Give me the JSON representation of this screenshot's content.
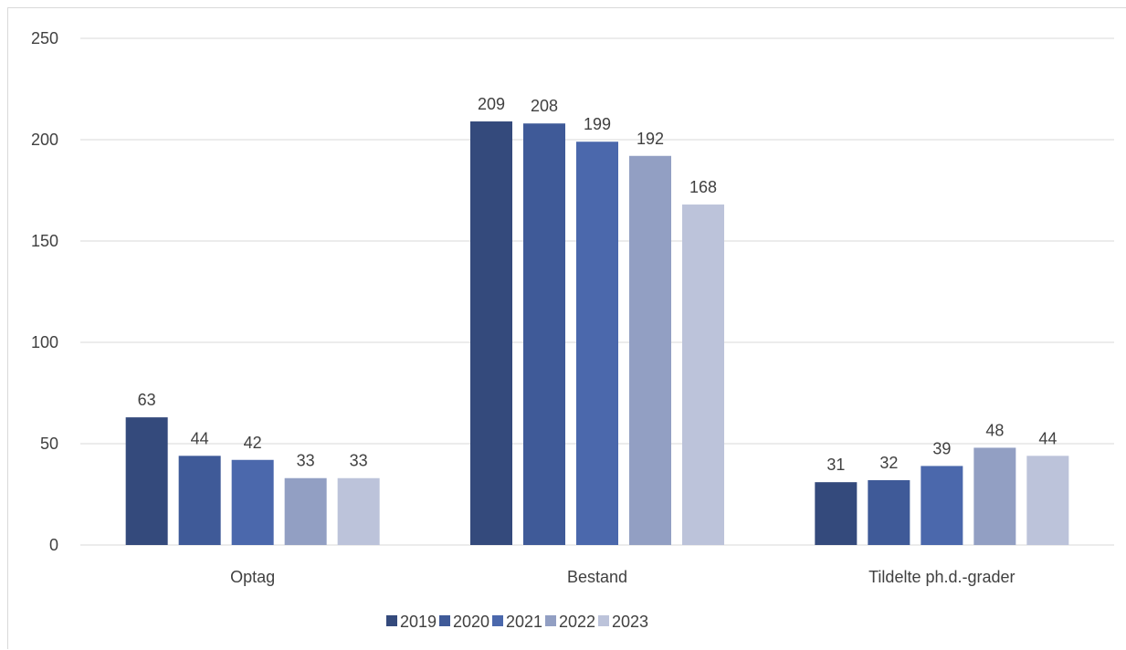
{
  "chart_data": {
    "type": "bar",
    "categories": [
      "Optag",
      "Bestand",
      "Tildelte ph.d.-grader"
    ],
    "series": [
      {
        "name": "2019",
        "values": [
          63,
          209,
          31
        ],
        "color": "#344a7c"
      },
      {
        "name": "2020",
        "values": [
          44,
          208,
          32
        ],
        "color": "#3f5a98"
      },
      {
        "name": "2021",
        "values": [
          42,
          199,
          39
        ],
        "color": "#4b68ac"
      },
      {
        "name": "2022",
        "values": [
          33,
          192,
          48
        ],
        "color": "#929fc3"
      },
      {
        "name": "2023",
        "values": [
          33,
          168,
          44
        ],
        "color": "#bcc3da"
      }
    ],
    "yticks": [
      "0",
      "50",
      "100",
      "150",
      "200",
      "250"
    ],
    "ylim": [
      0,
      250
    ],
    "grid": true,
    "legend_position": "bottom",
    "colors": {
      "gridline": "#d9d9d9",
      "text": "#404040"
    }
  }
}
